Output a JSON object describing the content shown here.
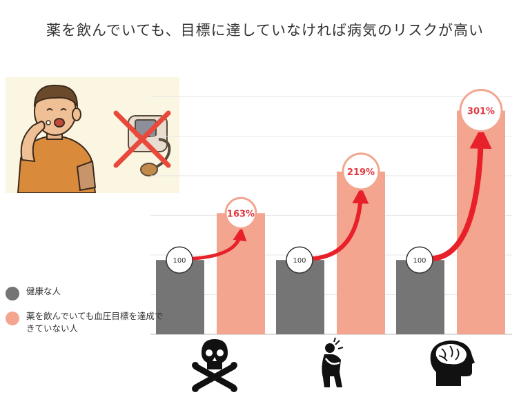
{
  "title": "薬を飲んでいても、目標に達していなければ病気のリスクが高い",
  "legend": [
    {
      "label": "健康な人",
      "color": "#757575"
    },
    {
      "label": "薬を飲んでいても血圧目標を達成できていない人",
      "color": "#f4a58f"
    }
  ],
  "colors": {
    "healthy": "#757575",
    "not_achieved": "#f4a58f",
    "arrow": "#e8202a",
    "badge_text": "#e0383f"
  },
  "icons": [
    "skull-crossbones-icon",
    "chest-pain-person-icon",
    "brain-head-icon"
  ],
  "chart_data": {
    "type": "bar",
    "categories": [
      "",
      "",
      ""
    ],
    "series": [
      {
        "name": "健康な人",
        "values": [
          100,
          100,
          100
        ],
        "labels": [
          "100",
          "100",
          "100"
        ]
      },
      {
        "name": "薬を飲んでいても血圧目標を達成できていない人",
        "values": [
          163,
          219,
          301
        ],
        "labels": [
          "163%",
          "219%",
          "301%"
        ]
      }
    ],
    "ylim": [
      0,
      320
    ],
    "grid": true,
    "legend_position": "left"
  }
}
